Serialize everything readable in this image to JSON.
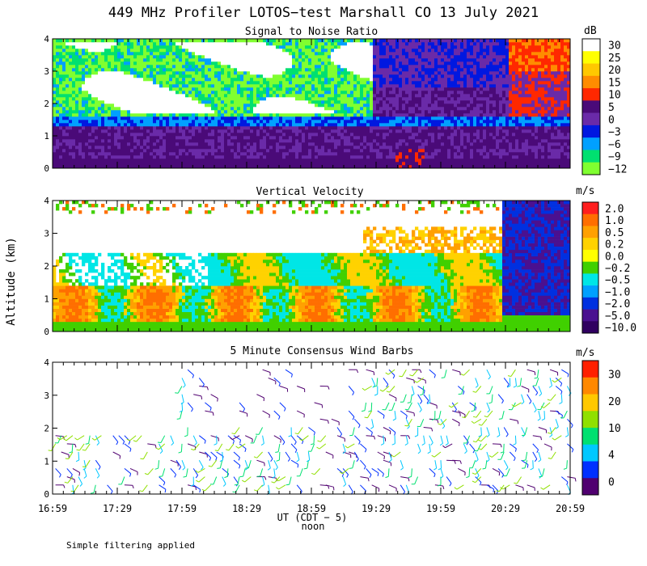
{
  "chart_data": [
    {
      "type": "heatmap",
      "panel": "snr",
      "title": "Signal to Noise Ratio",
      "unit": "dB",
      "ylim": [
        0,
        4
      ],
      "y_ticks": [
        "0",
        "1",
        "2",
        "3",
        "4"
      ],
      "colorbar": {
        "labels": [
          "30",
          "25",
          "20",
          "15",
          "10",
          "5",
          "0",
          "−3",
          "−6",
          "−9",
          "−12"
        ],
        "colors": [
          "#ffffff",
          "#ffff00",
          "#ffc800",
          "#ff8c00",
          "#ff2800",
          "#4a0a78",
          "#6a2aa8",
          "#0018e0",
          "#00a0ff",
          "#00e070",
          "#80ff30"
        ]
      }
    },
    {
      "type": "heatmap",
      "panel": "vertical_velocity",
      "title": "Vertical Velocity",
      "unit": "m/s",
      "ylim": [
        0,
        4
      ],
      "y_ticks": [
        "0",
        "1",
        "2",
        "3",
        "4"
      ],
      "colorbar": {
        "labels": [
          "2.0",
          "1.0",
          "0.5",
          "0.2",
          "0.0",
          "−0.2",
          "−0.5",
          "−1.0",
          "−2.0",
          "−5.0",
          "−10.0"
        ],
        "colors": [
          "#ff1e1e",
          "#ff6e00",
          "#ffa000",
          "#ffd200",
          "#ffff00",
          "#40d000",
          "#00e6e6",
          "#00a0ff",
          "#0030e0",
          "#4a1090",
          "#300060"
        ]
      }
    },
    {
      "type": "scatter",
      "panel": "wind_barbs",
      "title": "5 Minute Consensus Wind Barbs",
      "unit": "m/s",
      "ylim": [
        0,
        4
      ],
      "y_ticks": [
        "0",
        "1",
        "2",
        "3",
        "4"
      ],
      "colorbar": {
        "labels": [
          "30",
          "20",
          "10",
          "4",
          "0"
        ],
        "colors": [
          "#ff2000",
          "#ff8800",
          "#ffc800",
          "#90e000",
          "#00e070",
          "#00c8ff",
          "#0030ff",
          "#500070"
        ]
      }
    }
  ],
  "figure": {
    "title": "449 MHz Profiler LOTOS−test Marshall CO 13 July 2021",
    "ylabel": "Altitude (km)",
    "xlabel": "UT  (CDT − 5)",
    "xlabel_sub": "noon",
    "x_ticks": [
      "16:59",
      "17:29",
      "17:59",
      "18:29",
      "18:59",
      "19:29",
      "19:59",
      "20:29",
      "20:59"
    ],
    "footnote": "Simple filtering applied"
  }
}
